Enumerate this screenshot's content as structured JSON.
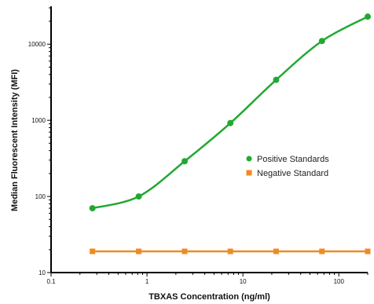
{
  "chart_data": {
    "type": "scatter",
    "title": "",
    "xlabel": "TBXAS Concentration (ng/ml)",
    "ylabel": "Median Fluorescent Intensity (MFI)",
    "xscale": "log",
    "yscale": "log",
    "xlim": [
      0.1,
      200
    ],
    "ylim": [
      10,
      30000
    ],
    "x_ticks": [
      0.1,
      1,
      10,
      100
    ],
    "x_tick_labels": [
      "0.1",
      "1",
      "10",
      "100"
    ],
    "y_ticks": [
      10,
      100,
      1000,
      10000
    ],
    "y_tick_labels": [
      "10",
      "100",
      "1000",
      "10000"
    ],
    "grid": false,
    "legend_position": "right",
    "series": [
      {
        "name": "Positive Standards",
        "color": "#22a832",
        "marker": "circle",
        "x": [
          0.27,
          0.82,
          2.47,
          7.4,
          22.2,
          66.7,
          200
        ],
        "y": [
          70,
          100,
          290,
          920,
          3400,
          11000,
          23000
        ],
        "fit_curve": true
      },
      {
        "name": "Negative Standard",
        "color": "#f08a24",
        "marker": "square",
        "x": [
          0.27,
          0.82,
          2.47,
          7.4,
          22.2,
          66.7,
          200
        ],
        "y": [
          19,
          19,
          19,
          19,
          19,
          19,
          19
        ],
        "fit_curve": false
      }
    ]
  }
}
